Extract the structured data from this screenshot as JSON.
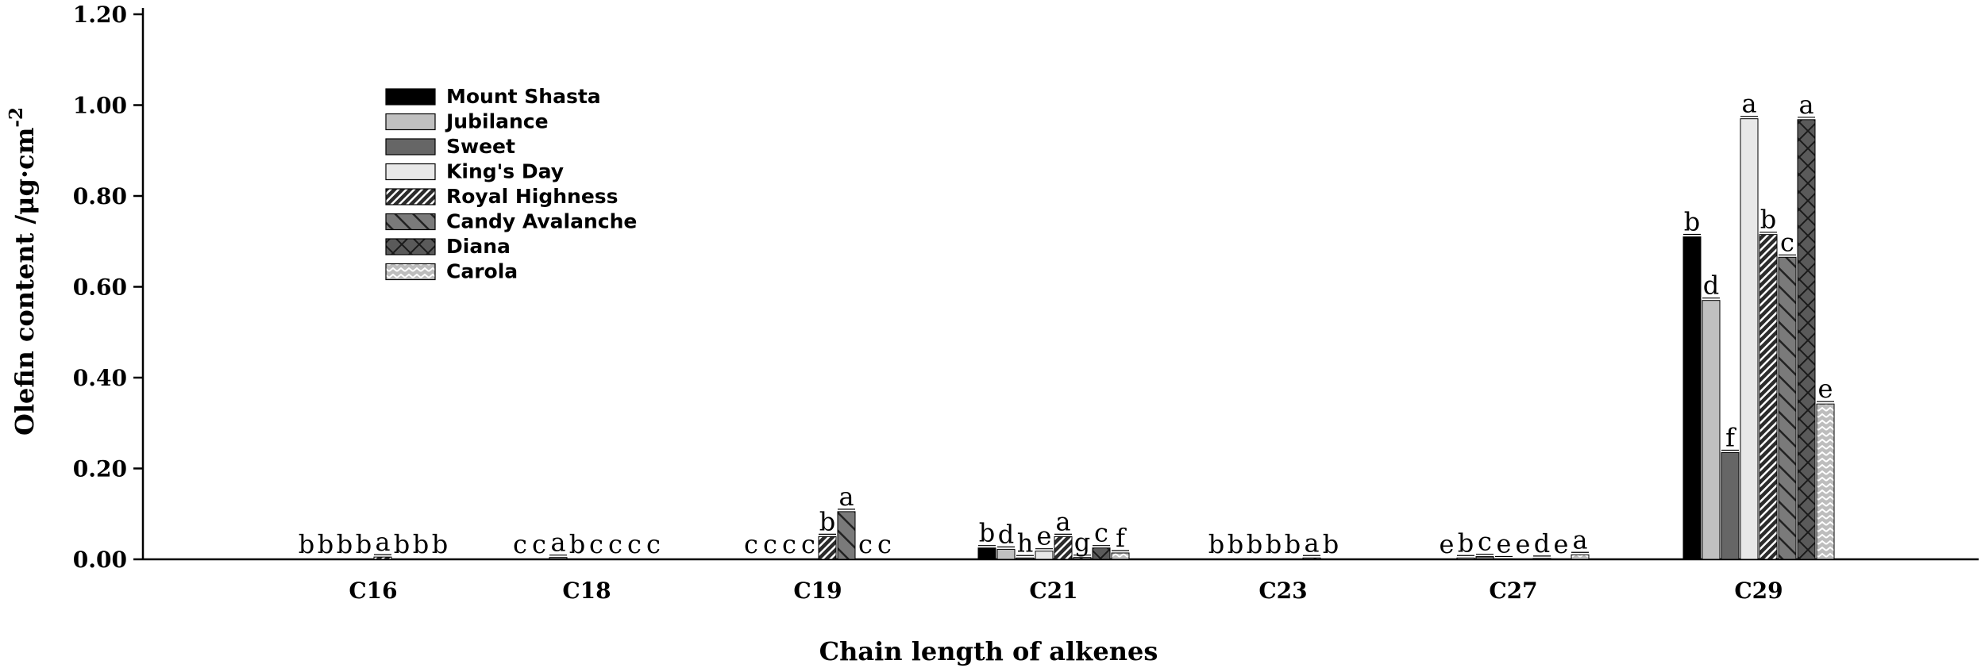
{
  "chart_data": {
    "type": "bar",
    "title": "",
    "xlabel": "Chain length of alkenes",
    "ylabel": "Olefin content /μg·cm",
    "ylabel_sup": "-2",
    "ylim": [
      0,
      1.2
    ],
    "yticks": [
      "0.00",
      "0.20",
      "0.40",
      "0.60",
      "0.80",
      "1.00",
      "1.20"
    ],
    "grid": false,
    "legend_position": "top-left",
    "categories": [
      "C16",
      "C18",
      "C19",
      "C21",
      "C23",
      "C27",
      "C29"
    ],
    "series": [
      {
        "name": "Mount Shasta",
        "color": "#000000",
        "pattern": "solid-black",
        "values": [
          0.0,
          0.0,
          0.0,
          0.025,
          0.0,
          0.0,
          0.71
        ],
        "labels": [
          "b",
          "c",
          "c",
          "b",
          "b",
          "e",
          "b"
        ]
      },
      {
        "name": "Jubilance",
        "color": "#c0c0c0",
        "pattern": "solid-lightgray",
        "values": [
          0.0,
          0.0,
          0.0,
          0.022,
          0.0,
          0.003,
          0.57
        ],
        "labels": [
          "b",
          "c",
          "c",
          "d",
          "b",
          "b",
          "d"
        ]
      },
      {
        "name": "Sweet",
        "color": "#666666",
        "pattern": "solid-darkgray",
        "values": [
          0.0,
          0.004,
          0.0,
          0.003,
          0.0,
          0.006,
          0.235
        ],
        "labels": [
          "b",
          "a",
          "c",
          "h",
          "b",
          "c",
          "f"
        ]
      },
      {
        "name": "King's Day",
        "color": "#e8e8e8",
        "pattern": "solid-verylight",
        "values": [
          0.0,
          0.0,
          0.0,
          0.018,
          0.0,
          0.001,
          0.97
        ],
        "labels": [
          "b",
          "b",
          "c",
          "e",
          "b",
          "e",
          "a"
        ]
      },
      {
        "name": "Royal Highness",
        "color": "#3a3a3a",
        "pattern": "dense-diagonal",
        "values": [
          0.005,
          0.0,
          0.05,
          0.05,
          0.0,
          0.0,
          0.715
        ],
        "labels": [
          "a",
          "c",
          "b",
          "a",
          "b",
          "e",
          "b"
        ]
      },
      {
        "name": "Candy Avalanche",
        "color": "#7a7a7a",
        "pattern": "backslash",
        "values": [
          0.0,
          0.0,
          0.105,
          0.004,
          0.003,
          0.002,
          0.665
        ],
        "labels": [
          "b",
          "c",
          "a",
          "g",
          "a",
          "d",
          "c"
        ]
      },
      {
        "name": "Diana",
        "color": "#555555",
        "pattern": "crosshatch",
        "values": [
          0.0,
          0.0,
          0.0,
          0.025,
          0.0,
          0.0,
          0.968
        ],
        "labels": [
          "b",
          "c",
          "c",
          "c",
          "b",
          "e",
          "a"
        ]
      },
      {
        "name": "Carola",
        "color": "#aaaaaa",
        "pattern": "zigzag",
        "values": [
          0.0,
          0.0,
          0.0,
          0.014,
          0.0,
          0.01,
          0.342
        ],
        "labels": [
          "b",
          "c",
          "c",
          "f",
          "",
          "a",
          "e"
        ]
      }
    ]
  }
}
